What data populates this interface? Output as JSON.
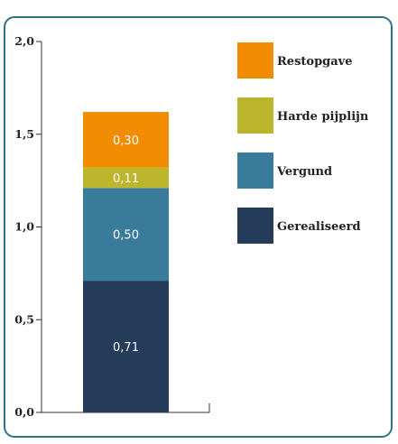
{
  "chart_data": {
    "type": "bar",
    "stacked": true,
    "title": "",
    "xlabel": "",
    "ylabel": "",
    "ylim": [
      0,
      2.0
    ],
    "yticks": [
      "0,0",
      "0,5",
      "1,0",
      "1,5",
      "2,0"
    ],
    "ytick_values": [
      0,
      0.5,
      1.0,
      1.5,
      2.0
    ],
    "grid": false,
    "legend_position": "right",
    "series": [
      {
        "name": "Gerealiseerd",
        "value": 0.71,
        "label": "0,71",
        "color": "#253d5b"
      },
      {
        "name": "Vergund",
        "value": 0.5,
        "label": "0,50",
        "color": "#3a7b9c"
      },
      {
        "name": "Harde pijplijn",
        "value": 0.11,
        "label": "0,11",
        "color": "#bdb52c"
      },
      {
        "name": "Restopgave",
        "value": 0.3,
        "label": "0,30",
        "color": "#f28c00"
      }
    ],
    "legend_order": [
      "Restopgave",
      "Harde pijplijn",
      "Vergund",
      "Gerealiseerd"
    ]
  }
}
